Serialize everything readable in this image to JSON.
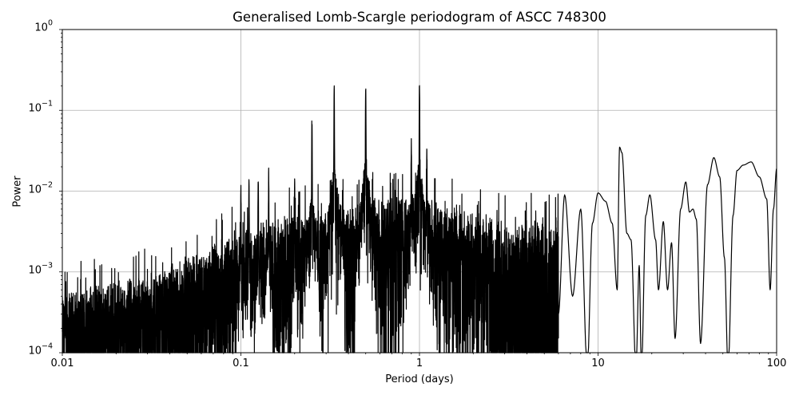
{
  "chart_data": {
    "type": "line",
    "title": "Generalised Lomb-Scargle periodogram of ASCC 748300",
    "xlabel": "Period (days)",
    "ylabel": "Power",
    "xscale": "log",
    "yscale": "log",
    "xlim": [
      0.01,
      100
    ],
    "ylim": [
      0.0001,
      1
    ],
    "grid": true,
    "legend": null,
    "x_tick_labels": [
      "0.01",
      "0.1",
      "1",
      "10",
      "100"
    ],
    "x_ticks": [
      0.01,
      0.1,
      1,
      10,
      100
    ],
    "y_tick_labels": [
      {
        "base": "10",
        "exp": "0"
      },
      {
        "base": "10",
        "exp": "−1"
      },
      {
        "base": "10",
        "exp": "−2"
      },
      {
        "base": "10",
        "exp": "−3"
      },
      {
        "base": "10",
        "exp": "−4"
      }
    ],
    "y_ticks": [
      1,
      0.1,
      0.01,
      0.001,
      0.0001
    ],
    "line_color": "#000000",
    "noise_floor_trend": [
      {
        "period": 0.01,
        "power": 0.00025
      },
      {
        "period": 0.03,
        "power": 0.0004
      },
      {
        "period": 0.1,
        "power": 0.0015
      },
      {
        "period": 0.3,
        "power": 0.003
      },
      {
        "period": 1.0,
        "power": 0.004
      },
      {
        "period": 3.0,
        "power": 0.002
      }
    ],
    "peaks": [
      {
        "period": 0.25,
        "power": 0.095
      },
      {
        "period": 0.333,
        "power": 0.21
      },
      {
        "period": 0.5,
        "power": 0.26
      },
      {
        "period": 1.0,
        "power": 0.26
      },
      {
        "period": 0.2,
        "power": 0.018
      },
      {
        "period": 0.143,
        "power": 0.02
      },
      {
        "period": 0.125,
        "power": 0.018
      },
      {
        "period": 0.111,
        "power": 0.015
      },
      {
        "period": 0.1,
        "power": 0.012
      },
      {
        "period": 0.9,
        "power": 0.05
      },
      {
        "period": 1.1,
        "power": 0.04
      }
    ],
    "long_period_curve": [
      {
        "period": 6.0,
        "power": 0.0003
      },
      {
        "period": 6.5,
        "power": 0.009
      },
      {
        "period": 7.2,
        "power": 0.0005
      },
      {
        "period": 8.0,
        "power": 0.006
      },
      {
        "period": 8.7,
        "power": 6e-05
      },
      {
        "period": 9.3,
        "power": 0.004
      },
      {
        "period": 10.0,
        "power": 0.0095
      },
      {
        "period": 11.0,
        "power": 0.0075
      },
      {
        "period": 12.0,
        "power": 0.004
      },
      {
        "period": 12.8,
        "power": 0.0006
      },
      {
        "period": 13.2,
        "power": 0.035
      },
      {
        "period": 13.6,
        "power": 0.03
      },
      {
        "period": 14.5,
        "power": 0.003
      },
      {
        "period": 15.3,
        "power": 0.0025
      },
      {
        "period": 16.3,
        "power": 6e-05
      },
      {
        "period": 17.0,
        "power": 0.0012
      },
      {
        "period": 17.5,
        "power": 6e-05
      },
      {
        "period": 18.5,
        "power": 0.005
      },
      {
        "period": 19.5,
        "power": 0.009
      },
      {
        "period": 21.0,
        "power": 0.0025
      },
      {
        "period": 21.8,
        "power": 0.0006
      },
      {
        "period": 23.2,
        "power": 0.0042
      },
      {
        "period": 24.5,
        "power": 0.0006
      },
      {
        "period": 25.8,
        "power": 0.0023
      },
      {
        "period": 27.0,
        "power": 0.00015
      },
      {
        "period": 29.0,
        "power": 0.006
      },
      {
        "period": 31.0,
        "power": 0.013
      },
      {
        "period": 32.5,
        "power": 0.0055
      },
      {
        "period": 34.0,
        "power": 0.006
      },
      {
        "period": 35.5,
        "power": 0.0045
      },
      {
        "period": 37.5,
        "power": 0.00013
      },
      {
        "period": 41.0,
        "power": 0.012
      },
      {
        "period": 44.5,
        "power": 0.026
      },
      {
        "period": 48.0,
        "power": 0.015
      },
      {
        "period": 51.0,
        "power": 0.0015
      },
      {
        "period": 53.5,
        "power": 6e-05
      },
      {
        "period": 57.0,
        "power": 0.005
      },
      {
        "period": 60.0,
        "power": 0.018
      },
      {
        "period": 65.0,
        "power": 0.021
      },
      {
        "period": 72.0,
        "power": 0.023
      },
      {
        "period": 80.0,
        "power": 0.015
      },
      {
        "period": 88.0,
        "power": 0.008
      },
      {
        "period": 92.0,
        "power": 0.0006
      },
      {
        "period": 96.0,
        "power": 0.006
      },
      {
        "period": 100.0,
        "power": 0.019
      }
    ]
  }
}
